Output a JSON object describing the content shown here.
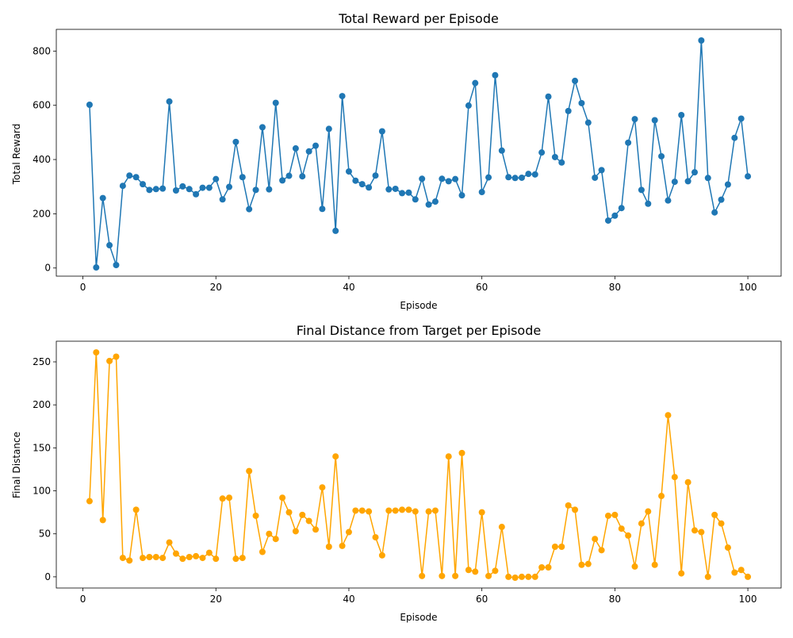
{
  "chart_data": [
    {
      "type": "line",
      "title": "Total Reward per Episode",
      "xlabel": "Episode",
      "ylabel": "Total Reward",
      "xlim": [
        -4,
        105
      ],
      "ylim": [
        -30,
        880
      ],
      "xticks": [
        0,
        20,
        40,
        60,
        80,
        100
      ],
      "yticks": [
        0,
        200,
        400,
        600,
        800
      ],
      "grid": false,
      "markers": true,
      "color": "#1f77b4",
      "series": [
        {
          "x": [
            1,
            2,
            3,
            4,
            5,
            6,
            7,
            8,
            9,
            10,
            11,
            12,
            13,
            14,
            15,
            16,
            17,
            18,
            19,
            20,
            21,
            22,
            23,
            24,
            25,
            26,
            27,
            28,
            29,
            30,
            31,
            32,
            33,
            34,
            35,
            36,
            37,
            38,
            39,
            40,
            41,
            42,
            43,
            44,
            45,
            46,
            47,
            48,
            49,
            50,
            51,
            52,
            53,
            54,
            55,
            56,
            57,
            58,
            59,
            60,
            61,
            62,
            63,
            64,
            65,
            66,
            67,
            68,
            69,
            70,
            71,
            72,
            73,
            74,
            75,
            76,
            77,
            78,
            79,
            80,
            81,
            82,
            83,
            84,
            85,
            86,
            87,
            88,
            89,
            90,
            91,
            92,
            93,
            94,
            95,
            96,
            97,
            98,
            99,
            100
          ],
          "values": [
            602,
            2,
            258,
            84,
            11,
            303,
            341,
            335,
            309,
            288,
            291,
            293,
            614,
            286,
            301,
            291,
            272,
            296,
            296,
            328,
            253,
            299,
            465,
            335,
            217,
            288,
            519,
            290,
            609,
            323,
            340,
            441,
            338,
            430,
            451,
            218,
            513,
            137,
            634,
            356,
            322,
            309,
            297,
            341,
            504,
            290,
            292,
            276,
            278,
            253,
            329,
            234,
            245,
            329,
            320,
            328,
            268,
            599,
            682,
            280,
            334,
            711,
            433,
            335,
            332,
            333,
            347,
            345,
            426,
            632,
            409,
            389,
            579,
            690,
            608,
            536,
            333,
            361,
            175,
            193,
            221,
            462,
            549,
            288,
            237,
            545,
            412,
            249,
            318,
            564,
            320,
            353,
            839,
            332,
            205,
            252,
            308,
            480,
            551,
            338
          ]
        }
      ]
    },
    {
      "type": "line",
      "title": "Final Distance from Target per Episode",
      "xlabel": "Episode",
      "ylabel": "Final Distance",
      "xlim": [
        -4,
        105
      ],
      "ylim": [
        -13,
        274
      ],
      "xticks": [
        0,
        20,
        40,
        60,
        80,
        100
      ],
      "yticks": [
        0,
        50,
        100,
        150,
        200,
        250
      ],
      "grid": false,
      "markers": true,
      "color": "#ffa500",
      "series": [
        {
          "x": [
            1,
            2,
            3,
            4,
            5,
            6,
            7,
            8,
            9,
            10,
            11,
            12,
            13,
            14,
            15,
            16,
            17,
            18,
            19,
            20,
            21,
            22,
            23,
            24,
            25,
            26,
            27,
            28,
            29,
            30,
            31,
            32,
            33,
            34,
            35,
            36,
            37,
            38,
            39,
            40,
            41,
            42,
            43,
            44,
            45,
            46,
            47,
            48,
            49,
            50,
            51,
            52,
            53,
            54,
            55,
            56,
            57,
            58,
            59,
            60,
            61,
            62,
            63,
            64,
            65,
            66,
            67,
            68,
            69,
            70,
            71,
            72,
            73,
            74,
            75,
            76,
            77,
            78,
            79,
            80,
            81,
            82,
            83,
            84,
            85,
            86,
            87,
            88,
            89,
            90,
            91,
            92,
            93,
            94,
            95,
            96,
            97,
            98,
            99,
            100
          ],
          "values": [
            88,
            261,
            66,
            251,
            256,
            22,
            19,
            78,
            22,
            23,
            23,
            22,
            40,
            27,
            21,
            23,
            24,
            22,
            28,
            21,
            91,
            92,
            21,
            22,
            123,
            71,
            29,
            50,
            44,
            92,
            75,
            53,
            72,
            65,
            55,
            104,
            35,
            140,
            36,
            52,
            77,
            77,
            76,
            46,
            25,
            77,
            77,
            78,
            78,
            76,
            1,
            76,
            77,
            1,
            140,
            1,
            144,
            8,
            6,
            75,
            1,
            7,
            58,
            0,
            -1,
            0,
            0,
            0,
            11,
            11,
            35,
            35,
            83,
            78,
            14,
            15,
            44,
            31,
            71,
            72,
            56,
            48,
            12,
            62,
            76,
            14,
            94,
            188,
            116,
            4,
            110,
            54,
            52,
            0,
            72,
            62,
            34,
            5,
            8,
            0
          ]
        }
      ]
    }
  ]
}
